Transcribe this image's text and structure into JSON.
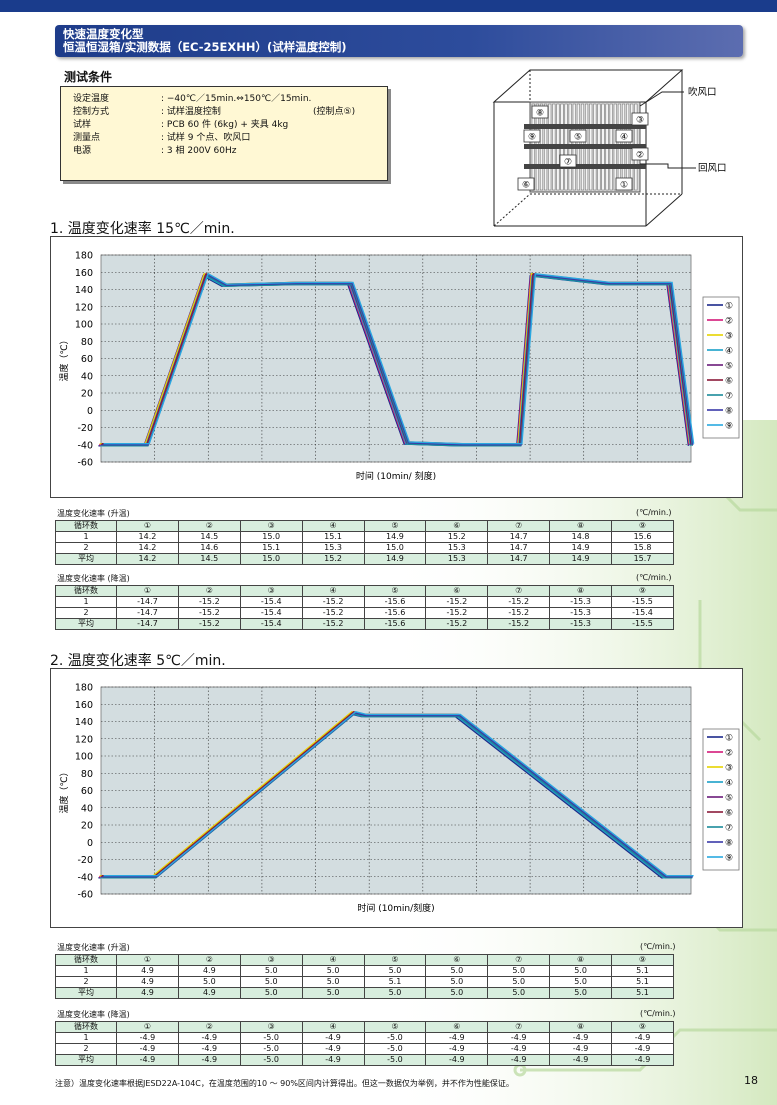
{
  "title": {
    "line1": "快速温度变化型",
    "line2": "恒温恒湿箱/实测数据（EC-25EXHH）(试样温度控制)"
  },
  "conditions": {
    "heading": "测试条件",
    "rows": [
      {
        "key": "设定温度",
        "value": ": −40℃／15min.⇔150℃／15min.",
        "note": ""
      },
      {
        "key": "控制方式",
        "value": ": 试样温度控制",
        "note": "(控制点⑤)"
      },
      {
        "key": "试样",
        "value": ": PCB 60 件 (6kg) + 夹具 4kg",
        "note": ""
      },
      {
        "key": "测量点",
        "value": ": 试样 9 个点、吹风口",
        "note": ""
      },
      {
        "key": "电源",
        "value": ": 3 相 200V 60Hz",
        "note": ""
      }
    ]
  },
  "diagram": {
    "outlet_label": "吹风口",
    "return_label": "回风口",
    "points": [
      "⑧",
      "③",
      "⑨",
      "⑤",
      "④",
      "⑦",
      "②",
      "⑥",
      "①"
    ]
  },
  "section1": {
    "heading": "1. 温度变化速率 15℃／min.",
    "chart_data": {
      "type": "line",
      "title": "",
      "xlabel": "时间 (10min/ 刻度)",
      "ylabel": "温度（℃）",
      "ylim": [
        -60,
        180
      ],
      "yticks": [
        180,
        160,
        140,
        120,
        100,
        80,
        60,
        40,
        20,
        0,
        -20,
        -40,
        -60
      ],
      "x_divisions": 11,
      "grid": "dotted",
      "legend_position": "right",
      "series_names": [
        "①",
        "②",
        "③",
        "④",
        "⑤",
        "⑥",
        "⑦",
        "⑧",
        "⑨"
      ],
      "series_colors": [
        "#1c2a8a",
        "#d4197a",
        "#e6d400",
        "#1aa0c8",
        "#6a1a7a",
        "#8a1a3a",
        "#1a8a9a",
        "#3a3aa8",
        "#2aa8e0"
      ],
      "profile_x_divisions": [
        0,
        0.85,
        1.95,
        2.3,
        3.6,
        4.65,
        5.7,
        6.7,
        7.8,
        8.05,
        9.45,
        10.6,
        11
      ],
      "profile_y": [
        -40,
        -40,
        157,
        145,
        147,
        147,
        -38,
        -40,
        -40,
        157,
        147,
        147,
        -40
      ]
    },
    "rise_table": {
      "caption": "温度变化速率 (升温)",
      "unit": "(℃/min.)",
      "header": [
        "循环数",
        "①",
        "②",
        "③",
        "④",
        "⑤",
        "⑥",
        "⑦",
        "⑧",
        "⑨"
      ],
      "rows": [
        [
          "1",
          "14.2",
          "14.5",
          "15.0",
          "15.1",
          "14.9",
          "15.2",
          "14.7",
          "14.8",
          "15.6"
        ],
        [
          "2",
          "14.2",
          "14.6",
          "15.1",
          "15.3",
          "15.0",
          "15.3",
          "14.7",
          "14.9",
          "15.8"
        ],
        [
          "平均",
          "14.2",
          "14.5",
          "15.0",
          "15.2",
          "14.9",
          "15.3",
          "14.7",
          "14.9",
          "15.7"
        ]
      ]
    },
    "fall_table": {
      "caption": "温度变化速率 (降温)",
      "unit": "(℃/min.)",
      "header": [
        "循环数",
        "①",
        "②",
        "③",
        "④",
        "⑤",
        "⑥",
        "⑦",
        "⑧",
        "⑨"
      ],
      "rows": [
        [
          "1",
          "-14.7",
          "-15.2",
          "-15.4",
          "-15.2",
          "-15.6",
          "-15.2",
          "-15.2",
          "-15.3",
          "-15.5"
        ],
        [
          "2",
          "-14.7",
          "-15.2",
          "-15.4",
          "-15.2",
          "-15.6",
          "-15.2",
          "-15.2",
          "-15.3",
          "-15.4"
        ],
        [
          "平均",
          "-14.7",
          "-15.2",
          "-15.4",
          "-15.2",
          "-15.6",
          "-15.2",
          "-15.2",
          "-15.3",
          "-15.5"
        ]
      ]
    }
  },
  "section2": {
    "heading": "2. 温度变化速率 5℃／min.",
    "chart_data": {
      "type": "line",
      "title": "",
      "xlabel": "时间 (10min/刻度)",
      "ylabel": "温度（℃）",
      "ylim": [
        -60,
        180
      ],
      "yticks": [
        180,
        160,
        140,
        120,
        100,
        80,
        60,
        40,
        20,
        0,
        -20,
        -40,
        -60
      ],
      "x_divisions": 11,
      "grid": "dotted",
      "legend_position": "right",
      "series_names": [
        "①",
        "②",
        "③",
        "④",
        "⑤",
        "⑥",
        "⑦",
        "⑧",
        "⑨"
      ],
      "series_colors": [
        "#1c2a8a",
        "#d4197a",
        "#e6d400",
        "#1aa0c8",
        "#6a1a7a",
        "#8a1a3a",
        "#1a8a9a",
        "#3a3aa8",
        "#2aa8e0"
      ],
      "profile_x_divisions": [
        0,
        1.0,
        4.7,
        4.9,
        6.65,
        10.5,
        11
      ],
      "profile_y": [
        -40,
        -40,
        150,
        147,
        147,
        -40,
        -40
      ]
    },
    "rise_table": {
      "caption": "温度变化速率 (升温)",
      "unit": "(℃/min.)",
      "header": [
        "循环数",
        "①",
        "②",
        "③",
        "④",
        "⑤",
        "⑥",
        "⑦",
        "⑧",
        "⑨"
      ],
      "rows": [
        [
          "1",
          "4.9",
          "4.9",
          "5.0",
          "5.0",
          "5.0",
          "5.0",
          "5.0",
          "5.0",
          "5.1"
        ],
        [
          "2",
          "4.9",
          "5.0",
          "5.0",
          "5.0",
          "5.1",
          "5.0",
          "5.0",
          "5.0",
          "5.1"
        ],
        [
          "平均",
          "4.9",
          "4.9",
          "5.0",
          "5.0",
          "5.0",
          "5.0",
          "5.0",
          "5.0",
          "5.1"
        ]
      ]
    },
    "fall_table": {
      "caption": "温度变化速率 (降温)",
      "unit": "(℃/min.)",
      "header": [
        "循环数",
        "①",
        "②",
        "③",
        "④",
        "⑤",
        "⑥",
        "⑦",
        "⑧",
        "⑨"
      ],
      "rows": [
        [
          "1",
          "-4.9",
          "-4.9",
          "-5.0",
          "-4.9",
          "-5.0",
          "-4.9",
          "-4.9",
          "-4.9",
          "-4.9"
        ],
        [
          "2",
          "-4.9",
          "-4.9",
          "-5.0",
          "-4.9",
          "-5.0",
          "-4.9",
          "-4.9",
          "-4.9",
          "-4.9"
        ],
        [
          "平均",
          "-4.9",
          "-4.9",
          "-5.0",
          "-4.9",
          "-5.0",
          "-4.9",
          "-4.9",
          "-4.9",
          "-4.9"
        ]
      ]
    }
  },
  "footnote": "注意）温度变化速率根据JESD22A-104C，在温度范围的10 ～ 90%区间内计算得出。但这一数据仅为举例，并不作为性能保证。",
  "page_number": "18"
}
